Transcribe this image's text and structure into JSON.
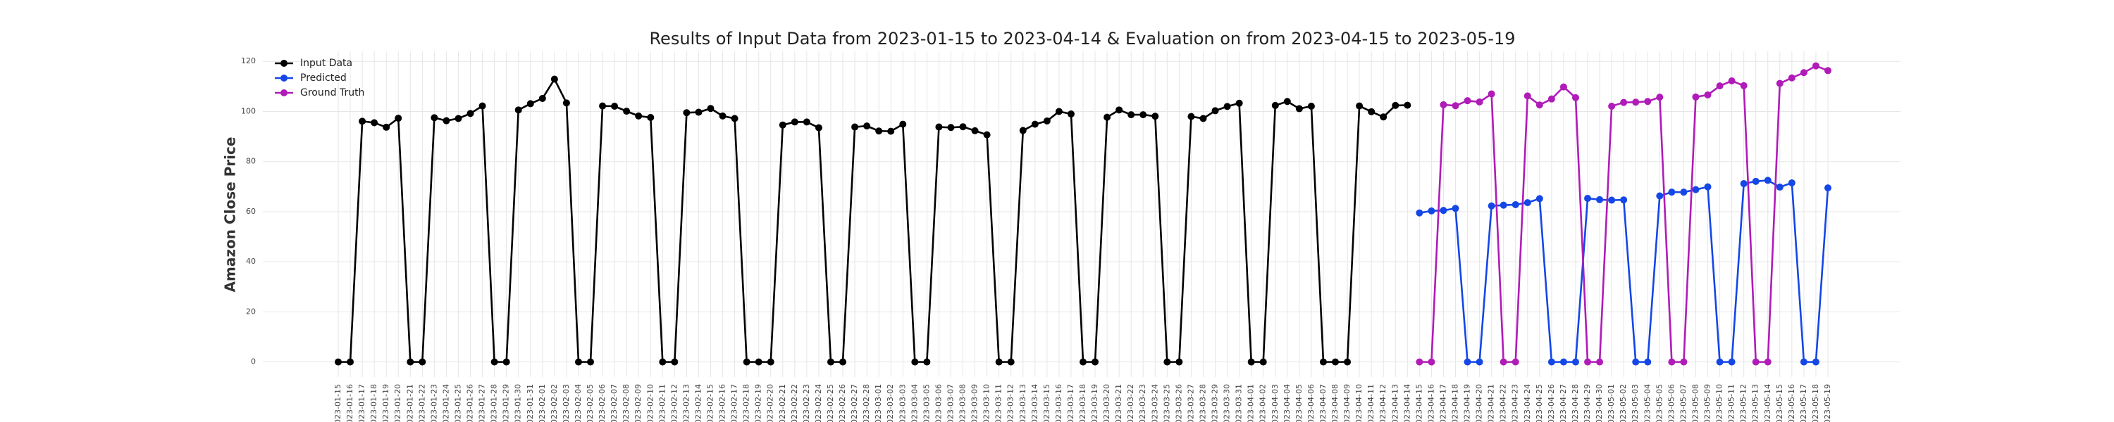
{
  "chart_data": {
    "type": "line",
    "title": "Results of Input Data from 2023-01-15 to 2023-04-14 & Evaluation on from 2023-04-15 to 2023-05-19",
    "ylabel": "Amazon Close Price",
    "x": [
      "2023-01-15",
      "2023-01-16",
      "2023-01-17",
      "2023-01-18",
      "2023-01-19",
      "2023-01-20",
      "2023-01-21",
      "2023-01-22",
      "2023-01-23",
      "2023-01-24",
      "2023-01-25",
      "2023-01-26",
      "2023-01-27",
      "2023-01-28",
      "2023-01-29",
      "2023-01-30",
      "2023-01-31",
      "2023-02-01",
      "2023-02-02",
      "2023-02-03",
      "2023-02-04",
      "2023-02-05",
      "2023-02-06",
      "2023-02-07",
      "2023-02-08",
      "2023-02-09",
      "2023-02-10",
      "2023-02-11",
      "2023-02-12",
      "2023-02-13",
      "2023-02-14",
      "2023-02-15",
      "2023-02-16",
      "2023-02-17",
      "2023-02-18",
      "2023-02-19",
      "2023-02-20",
      "2023-02-21",
      "2023-02-22",
      "2023-02-23",
      "2023-02-24",
      "2023-02-25",
      "2023-02-26",
      "2023-02-27",
      "2023-02-28",
      "2023-03-01",
      "2023-03-02",
      "2023-03-03",
      "2023-03-04",
      "2023-03-05",
      "2023-03-06",
      "2023-03-07",
      "2023-03-08",
      "2023-03-09",
      "2023-03-10",
      "2023-03-11",
      "2023-03-12",
      "2023-03-13",
      "2023-03-14",
      "2023-03-15",
      "2023-03-16",
      "2023-03-17",
      "2023-03-18",
      "2023-03-19",
      "2023-03-20",
      "2023-03-21",
      "2023-03-22",
      "2023-03-23",
      "2023-03-24",
      "2023-03-25",
      "2023-03-26",
      "2023-03-27",
      "2023-03-28",
      "2023-03-29",
      "2023-03-30",
      "2023-03-31",
      "2023-04-01",
      "2023-04-02",
      "2023-04-03",
      "2023-04-04",
      "2023-04-05",
      "2023-04-06",
      "2023-04-07",
      "2023-04-08",
      "2023-04-09",
      "2023-04-10",
      "2023-04-11",
      "2023-04-12",
      "2023-04-13",
      "2023-04-14",
      "2023-04-15",
      "2023-04-16",
      "2023-04-17",
      "2023-04-18",
      "2023-04-19",
      "2023-04-20",
      "2023-04-21",
      "2023-04-22",
      "2023-04-23",
      "2023-04-24",
      "2023-04-25",
      "2023-04-26",
      "2023-04-27",
      "2023-04-28",
      "2023-04-29",
      "2023-04-30",
      "2023-05-01",
      "2023-05-02",
      "2023-05-03",
      "2023-05-04",
      "2023-05-05",
      "2023-05-06",
      "2023-05-07",
      "2023-05-08",
      "2023-05-09",
      "2023-05-10",
      "2023-05-11",
      "2023-05-12",
      "2023-05-13",
      "2023-05-14",
      "2023-05-15",
      "2023-05-16",
      "2023-05-17",
      "2023-05-18",
      "2023-05-19"
    ],
    "series": [
      {
        "name": "Input Data",
        "color": "#000000",
        "values": [
          0,
          0,
          96.1,
          95.5,
          93.7,
          97.3,
          0,
          0,
          97.5,
          96.3,
          97.2,
          99.2,
          102.2,
          0,
          0,
          100.6,
          103.1,
          105.2,
          112.9,
          103.4,
          0,
          0,
          102.2,
          102.1,
          100.1,
          98.2,
          97.6,
          0,
          0,
          99.5,
          99.7,
          101.2,
          98.2,
          97.2,
          0,
          0,
          0,
          94.6,
          95.8,
          95.8,
          93.5,
          0,
          0,
          93.8,
          94.2,
          92.2,
          92.1,
          94.9,
          0,
          0,
          93.8,
          93.6,
          93.9,
          92.3,
          90.7,
          0,
          0,
          92.4,
          94.9,
          96.2,
          100.0,
          99.0,
          0,
          0,
          97.7,
          100.6,
          98.7,
          98.7,
          98.1,
          0,
          0,
          98.0,
          97.2,
          100.3,
          102.0,
          103.3,
          0,
          0,
          102.4,
          104.0,
          101.1,
          102.1,
          0,
          0,
          0,
          102.2,
          99.9,
          97.8,
          102.4,
          102.5,
          null,
          null,
          null,
          null,
          null,
          null,
          null,
          null,
          null,
          null,
          null,
          null,
          null,
          null,
          null,
          null,
          null,
          null,
          null,
          null,
          null,
          null,
          null,
          null,
          null,
          null,
          null,
          null,
          null,
          null,
          null,
          null,
          null,
          null,
          null
        ]
      },
      {
        "name": "Predicted",
        "color": "#1447e6",
        "values": [
          null,
          null,
          null,
          null,
          null,
          null,
          null,
          null,
          null,
          null,
          null,
          null,
          null,
          null,
          null,
          null,
          null,
          null,
          null,
          null,
          null,
          null,
          null,
          null,
          null,
          null,
          null,
          null,
          null,
          null,
          null,
          null,
          null,
          null,
          null,
          null,
          null,
          null,
          null,
          null,
          null,
          null,
          null,
          null,
          null,
          null,
          null,
          null,
          null,
          null,
          null,
          null,
          null,
          null,
          null,
          null,
          null,
          null,
          null,
          null,
          null,
          null,
          null,
          null,
          null,
          null,
          null,
          null,
          null,
          null,
          null,
          null,
          null,
          null,
          null,
          null,
          null,
          null,
          null,
          null,
          null,
          null,
          null,
          null,
          null,
          null,
          null,
          null,
          null,
          null,
          59.5,
          60.3,
          60.5,
          61.3,
          0,
          0,
          62.3,
          62.6,
          62.8,
          63.6,
          65.2,
          0,
          0,
          0,
          65.3,
          64.8,
          64.6,
          64.7,
          0,
          0,
          66.3,
          67.8,
          67.8,
          68.8,
          69.9,
          0,
          0,
          71.2,
          72.1,
          72.5,
          69.8,
          71.5,
          0,
          0,
          69.5
        ]
      },
      {
        "name": "Ground Truth",
        "color": "#b01cb8",
        "values": [
          null,
          null,
          null,
          null,
          null,
          null,
          null,
          null,
          null,
          null,
          null,
          null,
          null,
          null,
          null,
          null,
          null,
          null,
          null,
          null,
          null,
          null,
          null,
          null,
          null,
          null,
          null,
          null,
          null,
          null,
          null,
          null,
          null,
          null,
          null,
          null,
          null,
          null,
          null,
          null,
          null,
          null,
          null,
          null,
          null,
          null,
          null,
          null,
          null,
          null,
          null,
          null,
          null,
          null,
          null,
          null,
          null,
          null,
          null,
          null,
          null,
          null,
          null,
          null,
          null,
          null,
          null,
          null,
          null,
          null,
          null,
          null,
          null,
          null,
          null,
          null,
          null,
          null,
          null,
          null,
          null,
          null,
          null,
          null,
          null,
          null,
          null,
          null,
          null,
          null,
          0,
          0,
          102.7,
          102.3,
          104.3,
          103.8,
          107.0,
          0,
          0,
          106.2,
          102.6,
          105.0,
          109.8,
          105.5,
          0,
          0,
          102.1,
          103.6,
          103.7,
          104.0,
          105.7,
          0,
          0,
          105.8,
          106.6,
          110.2,
          112.2,
          110.3,
          0,
          0,
          111.2,
          113.4,
          115.5,
          118.2,
          116.3
        ]
      }
    ],
    "ylim": [
      -6,
      124
    ],
    "yticks": [
      0,
      20,
      40,
      60,
      80,
      100,
      120
    ],
    "grid": true,
    "legend": "upper left"
  }
}
